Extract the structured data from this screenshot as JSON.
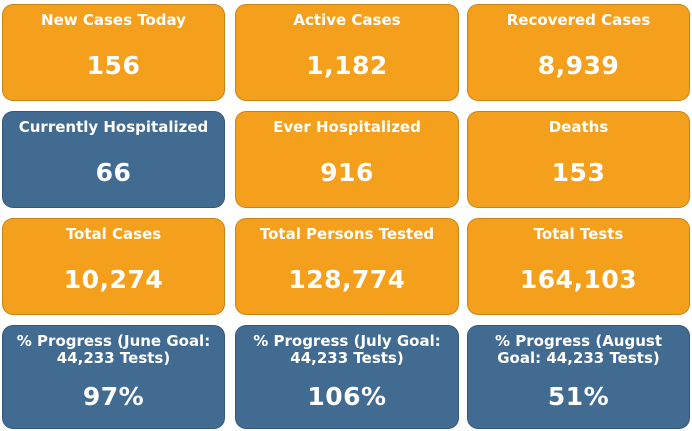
{
  "tiles": [
    {
      "label": "New Cases Today",
      "value": "156"
    },
    {
      "label": "Active Cases",
      "value": "1,182"
    },
    {
      "label": "Recovered Cases",
      "value": "8,939"
    },
    {
      "label": "Currently Hospitalized",
      "value": "66"
    },
    {
      "label": "Ever Hospitalized",
      "value": "916"
    },
    {
      "label": "Deaths",
      "value": "153"
    },
    {
      "label": "Total Cases",
      "value": "10,274"
    },
    {
      "label": "Total Persons Tested",
      "value": "128,774"
    },
    {
      "label": "Total Tests",
      "value": "164,103"
    },
    {
      "label": "% Progress (June Goal: 44,233 Tests)",
      "value": "97%"
    },
    {
      "label": "% Progress (July Goal: 44,233 Tests)",
      "value": "106%"
    },
    {
      "label": "% Progress (August Goal: 44,233 Tests)",
      "value": "51%"
    }
  ],
  "colors": {
    "orange_tile": "#f5a01d",
    "blue_tile": "#426b91",
    "text": "#ffffff"
  }
}
